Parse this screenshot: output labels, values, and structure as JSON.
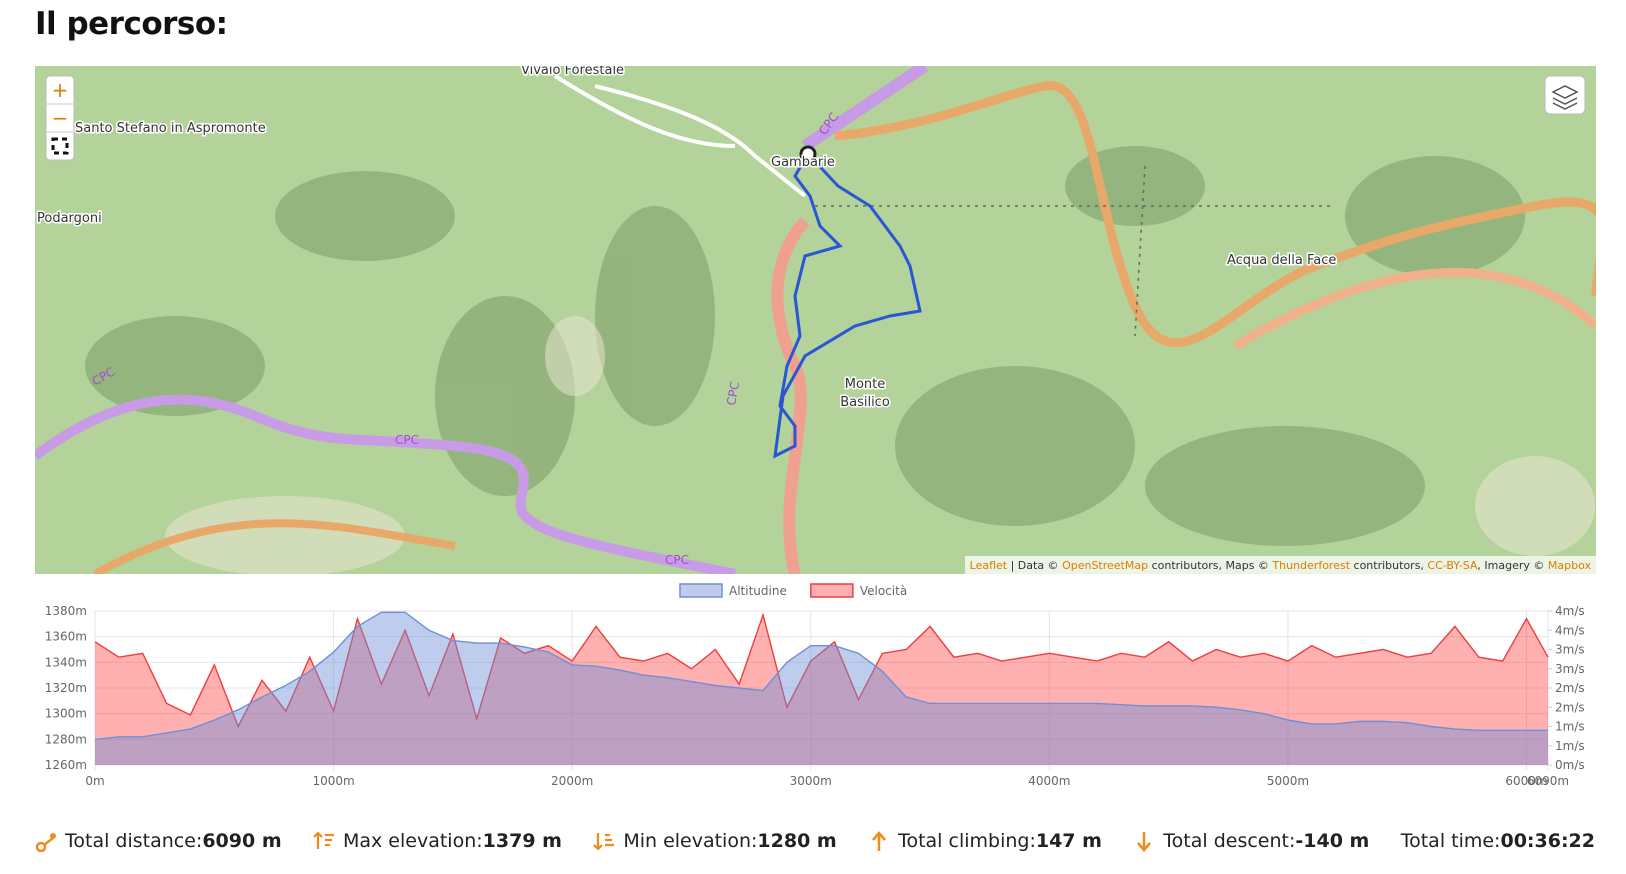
{
  "header": {
    "title": "Il percorso:"
  },
  "map": {
    "labels": [
      "Vivaio Forestale",
      "Santo Stefano in Aspromonte",
      "Podargoni",
      "Gambarie",
      "Acqua della Face",
      "Monte",
      "Basilico"
    ],
    "road_ref": "CPC",
    "zoom_in": "+",
    "zoom_out": "−",
    "attribution": {
      "leaflet": "Leaflet",
      "data": "| Data ©",
      "osm": "OpenStreetMap",
      "maps": "contributors, Maps ©",
      "thunderforest": "Thunderforest",
      "contrib": "contributors,",
      "license": "CC-BY-SA",
      "imagery": ", Imagery ©",
      "mapbox": "Mapbox"
    }
  },
  "chart_data": {
    "type": "area",
    "x": [
      0,
      100,
      200,
      300,
      400,
      500,
      600,
      700,
      800,
      900,
      1000,
      1100,
      1200,
      1300,
      1400,
      1500,
      1600,
      1700,
      1800,
      1900,
      2000,
      2100,
      2200,
      2300,
      2400,
      2500,
      2600,
      2700,
      2800,
      2900,
      3000,
      3100,
      3200,
      3300,
      3400,
      3500,
      3600,
      3700,
      3800,
      3900,
      4000,
      4100,
      4200,
      4300,
      4400,
      4500,
      4600,
      4700,
      4800,
      4900,
      5000,
      5100,
      5200,
      5300,
      5400,
      5500,
      5600,
      5700,
      5800,
      5900,
      6000,
      6090
    ],
    "series": [
      {
        "name": "Altitudine",
        "color": "#6f8fd8",
        "values": [
          1280,
          1282,
          1282,
          1285,
          1288,
          1295,
          1303,
          1313,
          1322,
          1333,
          1348,
          1368,
          1379,
          1379,
          1365,
          1357,
          1355,
          1355,
          1352,
          1348,
          1338,
          1337,
          1334,
          1330,
          1328,
          1325,
          1322,
          1320,
          1318,
          1340,
          1353,
          1353,
          1347,
          1333,
          1313,
          1308,
          1308,
          1308,
          1308,
          1308,
          1308,
          1308,
          1308,
          1307,
          1306,
          1306,
          1306,
          1305,
          1303,
          1300,
          1295,
          1292,
          1292,
          1294,
          1294,
          1293,
          1290,
          1288,
          1287,
          1287,
          1287,
          1287
        ]
      },
      {
        "name": "Velocità",
        "color": "#f03c3c",
        "axis": "y2",
        "values": [
          3.2,
          2.8,
          2.9,
          1.6,
          1.3,
          2.6,
          1.0,
          2.2,
          1.4,
          2.8,
          1.4,
          3.8,
          2.1,
          3.5,
          1.8,
          3.4,
          1.2,
          3.3,
          2.9,
          3.1,
          2.7,
          3.6,
          2.8,
          2.7,
          2.9,
          2.5,
          3.0,
          2.1,
          3.9,
          1.5,
          2.7,
          3.2,
          1.7,
          2.9,
          3.0,
          3.6,
          2.8,
          2.9,
          2.7,
          2.8,
          2.9,
          2.8,
          2.7,
          2.9,
          2.8,
          3.2,
          2.7,
          3.0,
          2.8,
          2.9,
          2.7,
          3.1,
          2.8,
          2.9,
          3.0,
          2.8,
          2.9,
          3.6,
          2.8,
          2.7,
          3.8,
          2.8
        ]
      }
    ],
    "xlim": [
      0,
      6090
    ],
    "xticks": [
      {
        "value": 0,
        "label": "0m"
      },
      {
        "value": 1000,
        "label": "1000m"
      },
      {
        "value": 2000,
        "label": "2000m"
      },
      {
        "value": 3000,
        "label": "3000m"
      },
      {
        "value": 4000,
        "label": "4000m"
      },
      {
        "value": 5000,
        "label": "5000m"
      },
      {
        "value": 6000,
        "label": "6000m"
      },
      {
        "value": 6090,
        "label": "6090m"
      }
    ],
    "ylim": [
      1260,
      1380
    ],
    "yticks": [
      {
        "value": 1260,
        "label": "1260m"
      },
      {
        "value": 1280,
        "label": "1280m"
      },
      {
        "value": 1300,
        "label": "1300m"
      },
      {
        "value": 1320,
        "label": "1320m"
      },
      {
        "value": 1340,
        "label": "1340m"
      },
      {
        "value": 1360,
        "label": "1360m"
      },
      {
        "value": 1380,
        "label": "1380m"
      }
    ],
    "y2lim": [
      0,
      4
    ],
    "y2ticks": [
      {
        "value": 0,
        "label": "0m/s"
      },
      {
        "value": 0.5,
        "label": "1m/s"
      },
      {
        "value": 1,
        "label": "1m/s"
      },
      {
        "value": 1.5,
        "label": "2m/s"
      },
      {
        "value": 2,
        "label": "2m/s"
      },
      {
        "value": 2.5,
        "label": "3m/s"
      },
      {
        "value": 3,
        "label": "3m/s"
      },
      {
        "value": 3.5,
        "label": "4m/s"
      },
      {
        "value": 4,
        "label": "4m/s"
      }
    ],
    "grid": true,
    "legend": "top"
  },
  "stats": [
    {
      "label": "Total distance:",
      "value": "6090 m"
    },
    {
      "label": "Max elevation:",
      "value": "1379 m"
    },
    {
      "label": "Min elevation:",
      "value": "1280 m"
    },
    {
      "label": "Total climbing:",
      "value": "147 m"
    },
    {
      "label": "Total descent:",
      "value": "-140 m"
    },
    {
      "label": "Total time:",
      "value": "00:36:22"
    }
  ]
}
